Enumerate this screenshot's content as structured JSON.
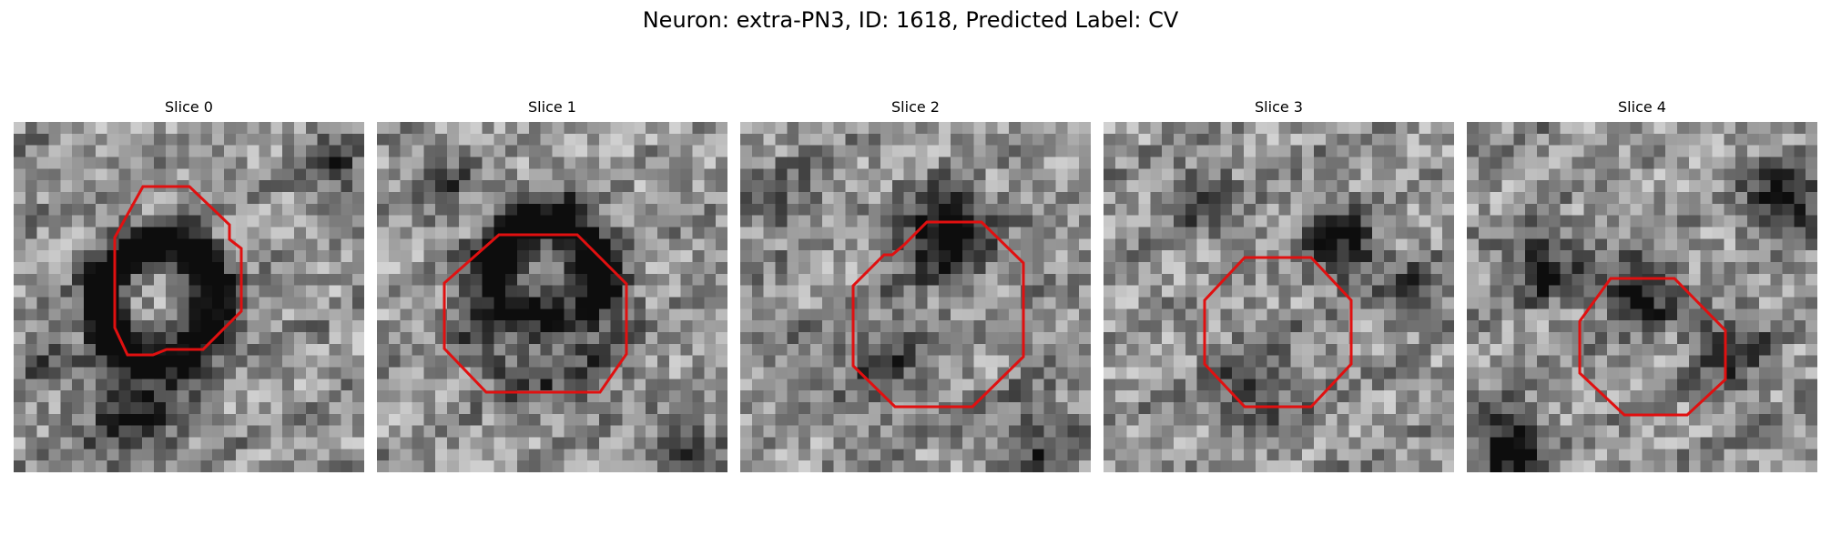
{
  "figure": {
    "title": "Neuron: extra-PN3, ID: 1618, Predicted Label: CV"
  },
  "panels": [
    {
      "title": "Slice 0"
    },
    {
      "title": "Slice 1"
    },
    {
      "title": "Slice 2"
    },
    {
      "title": "Slice 3"
    },
    {
      "title": "Slice 4"
    }
  ],
  "colors": {
    "contour": "#e01010",
    "background": "#ffffff"
  }
}
